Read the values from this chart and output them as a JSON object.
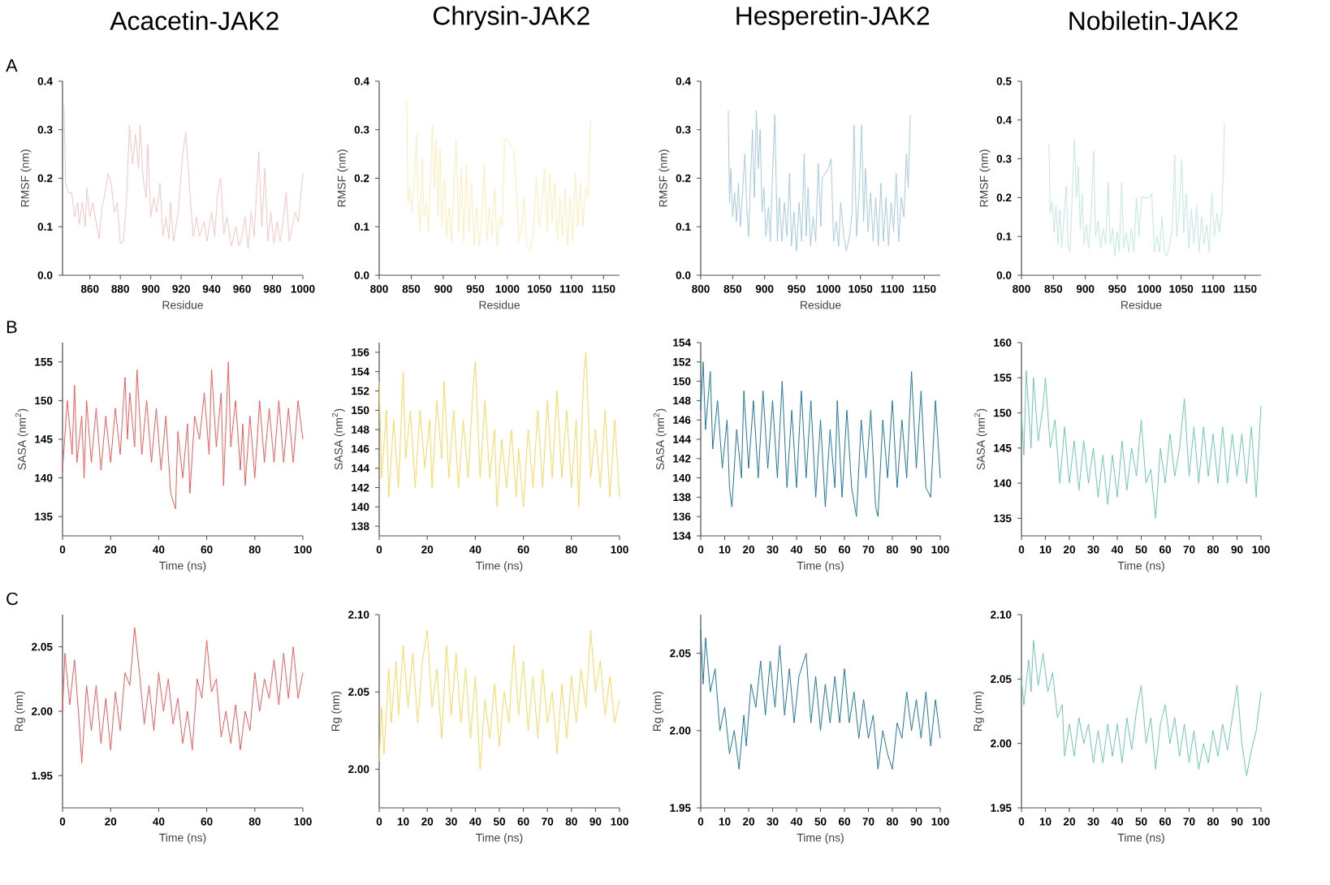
{
  "chart_data": [
    {
      "type": "line",
      "title": "Acacetin-JAK2",
      "annotations": [
        "A"
      ],
      "xlabel": "Residue",
      "ylabel": "RMSF (nm)",
      "color": "#f8c4c4",
      "xlim": [
        842,
        1000
      ],
      "xticks": [
        860,
        880,
        900,
        920,
        940,
        960,
        980,
        1000
      ],
      "ylim": [
        0,
        0.4
      ],
      "yticks": [
        {
          "value": 0,
          "label": "0.0"
        },
        0.1,
        0.2,
        0.3,
        0.4
      ],
      "x": [
        843,
        844,
        846,
        848,
        850,
        852,
        853,
        855,
        857,
        858,
        860,
        862,
        864,
        866,
        868,
        870,
        872,
        874,
        876,
        878,
        880,
        882,
        884,
        886,
        888,
        890,
        892,
        893,
        895,
        897,
        898,
        900,
        902,
        904,
        906,
        908,
        910,
        912,
        913,
        915,
        918,
        921,
        923,
        926,
        928,
        930,
        932,
        935,
        937,
        940,
        942,
        944,
        946,
        948,
        950,
        953,
        956,
        958,
        960,
        962,
        964,
        966,
        968,
        971,
        973,
        975,
        977,
        979,
        981,
        983,
        985,
        987,
        989,
        991,
        993,
        995,
        997,
        1000
      ],
      "values": [
        0.35,
        0.19,
        0.17,
        0.17,
        0.12,
        0.15,
        0.105,
        0.15,
        0.1,
        0.18,
        0.12,
        0.15,
        0.11,
        0.075,
        0.14,
        0.17,
        0.21,
        0.19,
        0.13,
        0.15,
        0.065,
        0.07,
        0.15,
        0.31,
        0.23,
        0.29,
        0.22,
        0.31,
        0.2,
        0.16,
        0.27,
        0.12,
        0.16,
        0.13,
        0.19,
        0.08,
        0.12,
        0.075,
        0.15,
        0.07,
        0.13,
        0.25,
        0.295,
        0.16,
        0.08,
        0.12,
        0.08,
        0.11,
        0.07,
        0.13,
        0.08,
        0.17,
        0.2,
        0.085,
        0.12,
        0.06,
        0.1,
        0.06,
        0.08,
        0.12,
        0.055,
        0.13,
        0.08,
        0.255,
        0.1,
        0.22,
        0.07,
        0.13,
        0.065,
        0.11,
        0.07,
        0.11,
        0.17,
        0.07,
        0.1,
        0.13,
        0.11,
        0.21
      ]
    },
    {
      "type": "line",
      "title": "Chrysin-JAK2",
      "xlabel": "Residue",
      "ylabel": "RMSF (nm)",
      "color": "#fdecb8",
      "xlim": [
        800,
        1175
      ],
      "xticks": [
        800,
        850,
        900,
        950,
        1000,
        1050,
        1100,
        1150
      ],
      "ylim": [
        0,
        0.4
      ],
      "yticks": [
        {
          "value": 0,
          "label": "0.0"
        },
        0.1,
        0.2,
        0.3,
        0.4
      ],
      "x": [
        843,
        845,
        848,
        851,
        855,
        858,
        861,
        864,
        867,
        870,
        874,
        877,
        880,
        883,
        886,
        889,
        892,
        895,
        898,
        902,
        905,
        909,
        913,
        917,
        920,
        924,
        928,
        932,
        936,
        940,
        944,
        948,
        952,
        956,
        960,
        964,
        968,
        972,
        976,
        980,
        984,
        988,
        992,
        996,
        1000,
        1010,
        1014,
        1018,
        1022,
        1026,
        1030,
        1035,
        1040,
        1045,
        1050,
        1054,
        1058,
        1062,
        1066,
        1070,
        1074,
        1078,
        1082,
        1086,
        1090,
        1094,
        1098,
        1102,
        1106,
        1110,
        1114,
        1118,
        1122,
        1126,
        1130
      ],
      "values": [
        0.36,
        0.15,
        0.18,
        0.13,
        0.2,
        0.29,
        0.15,
        0.09,
        0.24,
        0.12,
        0.15,
        0.09,
        0.2,
        0.31,
        0.18,
        0.28,
        0.12,
        0.26,
        0.1,
        0.2,
        0.08,
        0.14,
        0.07,
        0.2,
        0.28,
        0.09,
        0.22,
        0.07,
        0.23,
        0.09,
        0.19,
        0.06,
        0.14,
        0.06,
        0.11,
        0.23,
        0.07,
        0.14,
        0.08,
        0.18,
        0.06,
        0.12,
        0.1,
        0.28,
        0.28,
        0.26,
        0.18,
        0.07,
        0.1,
        0.16,
        0.06,
        0.05,
        0.08,
        0.2,
        0.1,
        0.15,
        0.22,
        0.09,
        0.21,
        0.11,
        0.19,
        0.07,
        0.16,
        0.08,
        0.18,
        0.06,
        0.16,
        0.07,
        0.21,
        0.1,
        0.19,
        0.1,
        0.18,
        0.16,
        0.32
      ]
    },
    {
      "type": "line",
      "title": "Hesperetin-JAK2",
      "xlabel": "Residue",
      "ylabel": "RMSF (nm)",
      "color": "#a6cade",
      "xlim": [
        800,
        1175
      ],
      "xticks": [
        800,
        850,
        900,
        950,
        1000,
        1050,
        1100,
        1150
      ],
      "ylim": [
        0,
        0.4
      ],
      "yticks": [
        {
          "value": 0,
          "label": "0.0"
        },
        0.1,
        0.2,
        0.3,
        0.4
      ],
      "x": [
        843,
        845,
        847,
        850,
        853,
        856,
        859,
        862,
        866,
        869,
        872,
        875,
        878,
        881,
        884,
        887,
        890,
        893,
        896,
        899,
        902,
        906,
        909,
        913,
        916,
        920,
        923,
        927,
        931,
        935,
        939,
        942,
        946,
        950,
        954,
        958,
        962,
        965,
        968,
        972,
        976,
        980,
        984,
        988,
        990,
        1000,
        1004,
        1008,
        1012,
        1016,
        1019,
        1024,
        1028,
        1033,
        1037,
        1040,
        1044,
        1048,
        1052,
        1055,
        1058,
        1062,
        1066,
        1070,
        1074,
        1078,
        1082,
        1086,
        1090,
        1094,
        1098,
        1102,
        1106,
        1110,
        1114,
        1118,
        1122,
        1125,
        1128
      ],
      "values": [
        0.34,
        0.15,
        0.22,
        0.12,
        0.17,
        0.11,
        0.19,
        0.1,
        0.18,
        0.25,
        0.14,
        0.08,
        0.2,
        0.3,
        0.16,
        0.34,
        0.22,
        0.3,
        0.13,
        0.18,
        0.08,
        0.14,
        0.07,
        0.23,
        0.33,
        0.07,
        0.16,
        0.07,
        0.15,
        0.08,
        0.21,
        0.06,
        0.13,
        0.05,
        0.15,
        0.07,
        0.25,
        0.08,
        0.18,
        0.06,
        0.12,
        0.07,
        0.23,
        0.1,
        0.2,
        0.22,
        0.24,
        0.07,
        0.11,
        0.06,
        0.15,
        0.08,
        0.05,
        0.08,
        0.13,
        0.31,
        0.08,
        0.17,
        0.31,
        0.11,
        0.22,
        0.09,
        0.17,
        0.07,
        0.16,
        0.06,
        0.19,
        0.07,
        0.16,
        0.06,
        0.15,
        0.09,
        0.21,
        0.07,
        0.16,
        0.12,
        0.25,
        0.18,
        0.33
      ]
    },
    {
      "type": "line",
      "title": "Nobiletin-JAK2",
      "xlabel": "Residue",
      "ylabel": "RMSF (nm)",
      "color": "#c2e8df",
      "xlim": [
        800,
        1175
      ],
      "xticks": [
        800,
        850,
        900,
        950,
        1000,
        1050,
        1100,
        1150
      ],
      "ylim": [
        0,
        0.5
      ],
      "yticks": [
        {
          "value": 0,
          "label": "0.0"
        },
        0.1,
        0.2,
        0.3,
        0.4,
        0.5
      ],
      "x": [
        843,
        845,
        848,
        851,
        854,
        857,
        860,
        863,
        867,
        870,
        873,
        876,
        880,
        883,
        886,
        889,
        892,
        895,
        898,
        902,
        905,
        909,
        913,
        916,
        920,
        924,
        928,
        932,
        936,
        939,
        943,
        946,
        950,
        953,
        957,
        960,
        964,
        968,
        972,
        976,
        980,
        984,
        988,
        1000,
        1004,
        1008,
        1012,
        1016,
        1020,
        1024,
        1028,
        1032,
        1036,
        1040,
        1043,
        1047,
        1051,
        1054,
        1058,
        1062,
        1066,
        1070,
        1074,
        1078,
        1082,
        1086,
        1090,
        1094,
        1098,
        1102,
        1106,
        1110,
        1114,
        1118
      ],
      "values": [
        0.34,
        0.16,
        0.19,
        0.11,
        0.18,
        0.08,
        0.17,
        0.07,
        0.16,
        0.23,
        0.08,
        0.06,
        0.23,
        0.35,
        0.2,
        0.28,
        0.12,
        0.21,
        0.08,
        0.13,
        0.07,
        0.15,
        0.32,
        0.1,
        0.14,
        0.07,
        0.12,
        0.08,
        0.24,
        0.08,
        0.12,
        0.05,
        0.11,
        0.06,
        0.24,
        0.07,
        0.11,
        0.06,
        0.12,
        0.06,
        0.2,
        0.1,
        0.2,
        0.2,
        0.21,
        0.06,
        0.1,
        0.06,
        0.15,
        0.06,
        0.05,
        0.08,
        0.12,
        0.31,
        0.1,
        0.17,
        0.3,
        0.11,
        0.21,
        0.07,
        0.17,
        0.08,
        0.18,
        0.06,
        0.15,
        0.08,
        0.13,
        0.06,
        0.21,
        0.1,
        0.16,
        0.11,
        0.17,
        0.39
      ]
    },
    {
      "type": "line",
      "annotations": [
        "B"
      ],
      "xlabel": "Time (ns)",
      "ylabel": "SASA (nm$^{2}$)",
      "color": "#f05a5a",
      "xlim": [
        0,
        100
      ],
      "xticks": [
        0,
        20,
        40,
        60,
        80,
        100
      ],
      "ylim": [
        132.5,
        157.5
      ],
      "yticks": [
        135,
        140,
        145,
        150,
        155
      ],
      "x": [
        0,
        2,
        4,
        5,
        6,
        8,
        9,
        10,
        12,
        14,
        16,
        18,
        20,
        22,
        24,
        26,
        27,
        28,
        30,
        31,
        33,
        35,
        37,
        39,
        41,
        43,
        45,
        47,
        48,
        50,
        52,
        53,
        55,
        57,
        59,
        61,
        62,
        64,
        66,
        67,
        69,
        70,
        72,
        74,
        75,
        76,
        78,
        80,
        82,
        84,
        86,
        88,
        90,
        92,
        94,
        96,
        98,
        100
      ],
      "values": [
        141,
        150,
        143,
        152,
        142,
        148,
        140,
        150,
        142,
        149,
        141,
        148,
        142,
        149,
        143,
        153,
        145,
        151,
        144,
        154,
        143,
        150,
        142,
        149,
        141,
        148,
        138,
        136,
        146,
        140,
        147,
        138,
        148,
        145,
        151,
        143,
        154,
        144,
        151,
        139,
        155,
        144,
        150,
        141,
        147,
        139,
        148,
        140,
        150,
        142,
        149,
        142,
        150,
        142,
        149,
        142,
        150,
        145
      ]
    },
    {
      "type": "line",
      "xlabel": "Time (ns)",
      "ylabel": "SASA (nm$^{2}$)",
      "color": "#fad75a",
      "xlim": [
        0,
        100
      ],
      "xticks": [
        0,
        20,
        40,
        60,
        80,
        100
      ],
      "ylim": [
        137,
        157
      ],
      "yticks": [
        138,
        140,
        142,
        144,
        146,
        148,
        150,
        152,
        154,
        156
      ],
      "x": [
        0,
        1,
        3,
        4,
        6,
        8,
        10,
        11,
        13,
        15,
        17,
        19,
        21,
        22,
        24,
        26,
        27,
        29,
        31,
        33,
        35,
        37,
        39,
        40,
        42,
        44,
        46,
        48,
        49,
        51,
        53,
        55,
        57,
        58,
        60,
        62,
        64,
        66,
        68,
        70,
        72,
        74,
        76,
        78,
        80,
        82,
        83,
        85,
        86,
        88,
        90,
        92,
        94,
        96,
        98,
        100
      ],
      "values": [
        153,
        143,
        150,
        141,
        149,
        142,
        154,
        145,
        150,
        142,
        150,
        144,
        149,
        142,
        151,
        145,
        153,
        143,
        150,
        142,
        149,
        143,
        152,
        155,
        143,
        151,
        143,
        148,
        140,
        147,
        142,
        148,
        141,
        146,
        140,
        148,
        142,
        150,
        142,
        151,
        143,
        152,
        143,
        150,
        142,
        149,
        140,
        153,
        156,
        143,
        148,
        142,
        150,
        141,
        149,
        141
      ]
    },
    {
      "type": "line",
      "xlabel": "Time (ns)",
      "ylabel": "SASA (nm$^{2}$)",
      "color": "#1e78a0",
      "xlim": [
        0,
        100
      ],
      "xticks": [
        0,
        10,
        20,
        30,
        40,
        50,
        60,
        70,
        80,
        90,
        100
      ],
      "ylim": [
        134,
        154
      ],
      "yticks": [
        134,
        136,
        138,
        140,
        142,
        144,
        146,
        148,
        150,
        152,
        154
      ],
      "x": [
        0,
        1,
        2,
        4,
        5,
        7,
        9,
        11,
        12,
        13,
        15,
        17,
        18,
        20,
        22,
        24,
        26,
        28,
        30,
        32,
        34,
        36,
        38,
        40,
        42,
        44,
        46,
        48,
        50,
        52,
        54,
        56,
        57,
        59,
        61,
        63,
        65,
        67,
        69,
        71,
        73,
        74,
        76,
        78,
        80,
        82,
        84,
        86,
        88,
        90,
        92,
        94,
        96,
        98,
        100
      ],
      "values": [
        147,
        152,
        145,
        151,
        143,
        148,
        141,
        146,
        139,
        137,
        145,
        140,
        149,
        141,
        148,
        140,
        149,
        141,
        148,
        140,
        150,
        139,
        147,
        139,
        149,
        140,
        148,
        138,
        146,
        137,
        145,
        139,
        148,
        138,
        147,
        139,
        136,
        146,
        140,
        147,
        137,
        136,
        146,
        140,
        148,
        139,
        146,
        140,
        151,
        141,
        149,
        139,
        138,
        148,
        140
      ]
    },
    {
      "type": "line",
      "xlabel": "Time (ns)",
      "ylabel": "SASA (nm$^{2}$)",
      "color": "#6cc8b0",
      "xlim": [
        0,
        100
      ],
      "xticks": [
        0,
        10,
        20,
        30,
        40,
        50,
        60,
        70,
        80,
        90,
        100
      ],
      "ylim": [
        132.5,
        160
      ],
      "yticks": [
        135,
        140,
        145,
        150,
        155,
        160
      ],
      "x": [
        0,
        1,
        2,
        4,
        5,
        7,
        9,
        10,
        12,
        14,
        16,
        18,
        20,
        22,
        24,
        26,
        28,
        30,
        32,
        34,
        36,
        38,
        40,
        42,
        44,
        46,
        48,
        50,
        52,
        54,
        56,
        58,
        60,
        62,
        64,
        66,
        68,
        70,
        72,
        74,
        76,
        78,
        80,
        82,
        84,
        86,
        88,
        90,
        92,
        94,
        96,
        98,
        100
      ],
      "values": [
        150,
        144,
        156,
        145,
        155,
        146,
        151,
        155,
        145,
        149,
        140,
        148,
        140,
        146,
        139,
        146,
        140,
        145,
        138,
        144,
        137,
        144,
        138,
        146,
        139,
        145,
        141,
        149,
        140,
        142,
        135,
        145,
        140,
        147,
        141,
        145,
        152,
        141,
        148,
        140,
        148,
        141,
        147,
        140,
        148,
        140,
        147,
        141,
        147,
        140,
        148,
        138,
        151
      ]
    },
    {
      "type": "line",
      "annotations": [
        "C"
      ],
      "xlabel": "Time (ns)",
      "ylabel": "Rg (nm)",
      "color": "#f05a5a",
      "xlim": [
        0,
        100
      ],
      "xticks": [
        0,
        20,
        40,
        60,
        80,
        100
      ],
      "ylim": [
        1.925,
        2.075
      ],
      "yticks": [
        1.95,
        {
          "value": 2,
          "label": "2.00"
        },
        2.05
      ],
      "x": [
        0,
        1,
        3,
        5,
        7,
        8,
        10,
        12,
        14,
        16,
        18,
        20,
        22,
        24,
        26,
        28,
        30,
        32,
        34,
        36,
        38,
        40,
        42,
        44,
        46,
        48,
        50,
        52,
        54,
        56,
        58,
        60,
        62,
        64,
        66,
        68,
        70,
        72,
        74,
        76,
        78,
        80,
        82,
        84,
        86,
        88,
        90,
        92,
        94,
        96,
        98,
        100
      ],
      "values": [
        2.0,
        2.045,
        2.005,
        2.04,
        1.99,
        1.96,
        2.02,
        1.985,
        2.02,
        1.975,
        2.01,
        1.97,
        2.015,
        1.985,
        2.03,
        2.02,
        2.065,
        2.03,
        1.99,
        2.02,
        1.985,
        2.03,
        2.0,
        2.025,
        1.99,
        2.01,
        1.975,
        2.0,
        1.97,
        2.025,
        2.01,
        2.055,
        2.015,
        2.025,
        1.98,
        2.0,
        1.975,
        2.005,
        1.97,
        2.0,
        1.985,
        2.03,
        2.0,
        2.025,
        2.01,
        2.04,
        2.005,
        2.045,
        2.01,
        2.05,
        2.01,
        2.03
      ]
    },
    {
      "type": "line",
      "xlabel": "Time (ns)",
      "ylabel": "Rg (nm)",
      "color": "#fad75a",
      "xlim": [
        0,
        100
      ],
      "xticks": [
        0,
        10,
        20,
        30,
        40,
        50,
        60,
        70,
        80,
        90,
        100
      ],
      "ylim": [
        1.975,
        2.1
      ],
      "yticks": [
        {
          "value": 2,
          "label": "2.00"
        },
        2.05,
        {
          "value": 2.1,
          "label": "2.10"
        }
      ],
      "x": [
        0,
        1,
        2,
        4,
        5,
        7,
        8,
        10,
        12,
        14,
        16,
        18,
        20,
        22,
        24,
        26,
        28,
        30,
        32,
        34,
        36,
        38,
        40,
        42,
        44,
        46,
        48,
        50,
        52,
        54,
        56,
        58,
        60,
        62,
        64,
        66,
        68,
        70,
        72,
        74,
        76,
        78,
        80,
        82,
        84,
        86,
        88,
        90,
        92,
        94,
        96,
        98,
        100
      ],
      "values": [
        2.005,
        2.04,
        2.01,
        2.065,
        2.03,
        2.07,
        2.035,
        2.08,
        2.04,
        2.075,
        2.03,
        2.07,
        2.09,
        2.04,
        2.065,
        2.02,
        2.08,
        2.035,
        2.075,
        2.03,
        2.065,
        2.02,
        2.06,
        2.0,
        2.045,
        2.02,
        2.055,
        2.015,
        2.05,
        2.03,
        2.08,
        2.035,
        2.07,
        2.025,
        2.06,
        2.02,
        2.065,
        2.03,
        2.05,
        2.01,
        2.055,
        2.02,
        2.06,
        2.03,
        2.065,
        2.04,
        2.09,
        2.05,
        2.07,
        2.035,
        2.06,
        2.03,
        2.045
      ]
    },
    {
      "type": "line",
      "xlabel": "Time (ns)",
      "ylabel": "Rg (nm)",
      "color": "#1e78a0",
      "xlim": [
        0,
        100
      ],
      "xticks": [
        0,
        10,
        20,
        30,
        40,
        50,
        60,
        70,
        80,
        90,
        100
      ],
      "ylim": [
        1.95,
        2.075
      ],
      "yticks": [
        1.95,
        {
          "value": 2,
          "label": "2.00"
        },
        2.05
      ],
      "x": [
        0,
        1,
        2,
        4,
        6,
        8,
        10,
        12,
        14,
        16,
        18,
        19,
        21,
        23,
        25,
        27,
        29,
        31,
        33,
        35,
        37,
        39,
        41,
        44,
        46,
        48,
        50,
        52,
        54,
        56,
        58,
        60,
        62,
        64,
        66,
        68,
        70,
        72,
        74,
        76,
        78,
        80,
        82,
        84,
        86,
        88,
        90,
        92,
        94,
        96,
        98,
        100
      ],
      "values": [
        2.065,
        2.03,
        2.06,
        2.025,
        2.04,
        2.0,
        2.015,
        1.985,
        2.0,
        1.975,
        2.01,
        1.99,
        2.03,
        2.015,
        2.045,
        2.01,
        2.045,
        2.015,
        2.055,
        2.01,
        2.04,
        2.005,
        2.035,
        2.05,
        2.005,
        2.035,
        2.0,
        2.03,
        2.005,
        2.035,
        2.005,
        2.04,
        2.005,
        2.025,
        1.995,
        2.02,
        1.995,
        2.01,
        1.975,
        2.0,
        1.985,
        1.975,
        2.005,
        1.995,
        2.025,
        2.0,
        2.02,
        1.995,
        2.025,
        1.99,
        2.02,
        1.995
      ]
    },
    {
      "type": "line",
      "xlabel": "Time (ns)",
      "ylabel": "Rg (nm)",
      "color": "#6cc8b0",
      "xlim": [
        0,
        100
      ],
      "xticks": [
        0,
        10,
        20,
        30,
        40,
        50,
        60,
        70,
        80,
        90,
        100
      ],
      "ylim": [
        1.95,
        2.1
      ],
      "yticks": [
        1.95,
        {
          "value": 2,
          "label": "2.00"
        },
        2.05,
        {
          "value": 2.1,
          "label": "2.10"
        }
      ],
      "x": [
        0,
        1,
        3,
        4,
        5,
        7,
        9,
        11,
        13,
        15,
        17,
        18,
        20,
        22,
        24,
        26,
        28,
        30,
        32,
        34,
        36,
        38,
        40,
        42,
        44,
        46,
        48,
        50,
        52,
        54,
        56,
        58,
        60,
        62,
        64,
        66,
        68,
        70,
        72,
        74,
        76,
        78,
        80,
        82,
        84,
        86,
        88,
        90,
        92,
        94,
        96,
        98,
        100
      ],
      "values": [
        2.05,
        2.03,
        2.065,
        2.04,
        2.08,
        2.045,
        2.07,
        2.04,
        2.055,
        2.02,
        2.03,
        1.99,
        2.015,
        1.99,
        2.02,
        2.0,
        2.015,
        1.985,
        2.01,
        1.985,
        2.015,
        1.99,
        2.015,
        1.985,
        2.02,
        1.995,
        2.025,
        2.045,
        2.0,
        2.02,
        1.98,
        2.015,
        2.03,
        2.0,
        2.02,
        1.99,
        2.015,
        1.985,
        2.01,
        1.98,
        2.0,
        1.985,
        2.01,
        1.99,
        2.015,
        1.995,
        2.02,
        2.045,
        2.0,
        1.975,
        1.995,
        2.01,
        2.04
      ]
    }
  ]
}
